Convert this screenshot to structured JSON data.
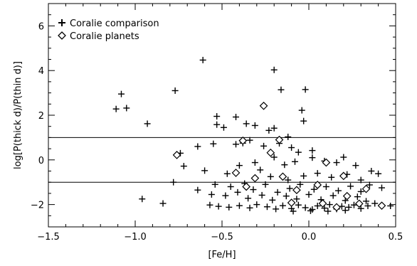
{
  "chart_data": {
    "type": "scatter",
    "xlabel": "[Fe/H]",
    "ylabel": "log[P(thick d)/P(thin d)]",
    "xlim": [
      -1.5,
      0.5
    ],
    "ylim": [
      -3,
      7
    ],
    "xticks": [
      -1.5,
      -1.0,
      -0.5,
      0.0,
      0.5
    ],
    "xtick_labels": [
      "−1.5",
      "−1.0",
      "−0.5",
      "0.0",
      "0.5"
    ],
    "yticks": [
      -2,
      0,
      2,
      4,
      6
    ],
    "ytick_labels": [
      "−2",
      "0",
      "2",
      "4",
      "6"
    ],
    "hlines": [
      1,
      -1
    ],
    "grid": false,
    "legend_position": "top-left",
    "series": [
      {
        "name": "Coralie comparison",
        "marker": "plus",
        "color": "#000000",
        "points": [
          [
            -1.08,
            2.95
          ],
          [
            -1.11,
            2.28
          ],
          [
            -1.05,
            2.32
          ],
          [
            -0.93,
            1.62
          ],
          [
            -0.77,
            3.1
          ],
          [
            -0.61,
            4.47
          ],
          [
            -0.2,
            4.03
          ],
          [
            -0.16,
            3.14
          ],
          [
            -0.02,
            3.15
          ],
          [
            -0.04,
            2.22
          ],
          [
            -0.53,
            1.95
          ],
          [
            -0.49,
            1.45
          ],
          [
            -0.53,
            1.58
          ],
          [
            -0.42,
            1.92
          ],
          [
            -0.36,
            1.62
          ],
          [
            -0.31,
            1.54
          ],
          [
            -0.2,
            1.42
          ],
          [
            -0.23,
            1.32
          ],
          [
            -0.12,
            1.03
          ],
          [
            -0.03,
            1.74
          ],
          [
            -0.64,
            0.6
          ],
          [
            -0.55,
            0.72
          ],
          [
            -0.42,
            0.7
          ],
          [
            -0.38,
            0.75
          ],
          [
            -0.34,
            0.88
          ],
          [
            -0.26,
            0.62
          ],
          [
            -0.17,
            0.74
          ],
          [
            -0.1,
            0.55
          ],
          [
            -0.06,
            0.34
          ],
          [
            0.02,
            0.42
          ],
          [
            -0.74,
            0.3
          ],
          [
            -0.72,
            -0.28
          ],
          [
            -0.6,
            -0.48
          ],
          [
            -0.78,
            -1.0
          ],
          [
            -0.96,
            -1.75
          ],
          [
            -0.84,
            -1.95
          ],
          [
            -0.47,
            -0.62
          ],
          [
            -0.4,
            -0.25
          ],
          [
            -0.31,
            -0.12
          ],
          [
            -0.28,
            -0.45
          ],
          [
            -0.2,
            0.12
          ],
          [
            -0.14,
            -0.22
          ],
          [
            -0.08,
            -0.08
          ],
          [
            0.02,
            0.1
          ],
          [
            0.09,
            -0.05
          ],
          [
            0.16,
            -0.12
          ],
          [
            0.2,
            0.12
          ],
          [
            0.27,
            -0.25
          ],
          [
            0.36,
            -0.5
          ],
          [
            0.4,
            -0.62
          ],
          [
            -0.54,
            -1.1
          ],
          [
            -0.45,
            -1.2
          ],
          [
            -0.37,
            -1.06
          ],
          [
            -0.32,
            -1.33
          ],
          [
            -0.25,
            -1.1
          ],
          [
            -0.18,
            -1.45
          ],
          [
            -0.11,
            -1.28
          ],
          [
            -0.05,
            -1.1
          ],
          [
            0.03,
            -1.32
          ],
          [
            0.1,
            -1.2
          ],
          [
            0.17,
            -1.38
          ],
          [
            0.24,
            -1.18
          ],
          [
            0.3,
            -1.42
          ],
          [
            0.35,
            -1.12
          ],
          [
            0.42,
            -1.25
          ],
          [
            -0.64,
            -1.35
          ],
          [
            -0.56,
            -1.55
          ],
          [
            -0.48,
            -1.6
          ],
          [
            -0.41,
            -1.45
          ],
          [
            -0.35,
            -1.72
          ],
          [
            -0.27,
            -1.58
          ],
          [
            -0.21,
            -1.8
          ],
          [
            -0.13,
            -1.62
          ],
          [
            -0.07,
            -1.75
          ],
          [
            0.0,
            -1.55
          ],
          [
            0.07,
            -1.78
          ],
          [
            0.14,
            -1.6
          ],
          [
            0.21,
            -1.82
          ],
          [
            0.28,
            -1.65
          ],
          [
            0.33,
            -1.85
          ],
          [
            -0.57,
            -2.02
          ],
          [
            -0.52,
            -2.08
          ],
          [
            -0.46,
            -2.12
          ],
          [
            -0.4,
            -2.05
          ],
          [
            -0.34,
            -2.15
          ],
          [
            -0.3,
            -2.0
          ],
          [
            -0.24,
            -2.1
          ],
          [
            -0.19,
            -2.2
          ],
          [
            -0.15,
            -2.05
          ],
          [
            -0.1,
            -2.18
          ],
          [
            -0.06,
            -2.02
          ],
          [
            -0.02,
            -2.14
          ],
          [
            0.02,
            -2.22
          ],
          [
            0.05,
            -2.06
          ],
          [
            0.09,
            -2.16
          ],
          [
            0.12,
            -2.0
          ],
          [
            0.16,
            -2.2
          ],
          [
            0.19,
            -2.08
          ],
          [
            0.23,
            -2.12
          ],
          [
            0.26,
            -2.02
          ],
          [
            0.3,
            -2.18
          ],
          [
            0.34,
            -2.06
          ],
          [
            0.47,
            -2.06
          ],
          [
            0.38,
            -1.95
          ],
          [
            -0.09,
            -2.3
          ],
          [
            0.01,
            -2.28
          ],
          [
            0.11,
            -2.3
          ],
          [
            0.21,
            -2.26
          ],
          [
            -0.22,
            -0.75
          ],
          [
            -0.03,
            -0.72
          ],
          [
            0.05,
            -0.6
          ],
          [
            0.13,
            -0.78
          ],
          [
            0.22,
            -0.65
          ],
          [
            0.3,
            -0.9
          ],
          [
            -0.12,
            -0.9
          ]
        ]
      },
      {
        "name": "Coralie planets",
        "marker": "diamond",
        "color": "#000000",
        "points": [
          [
            -0.26,
            2.42
          ],
          [
            -0.17,
            0.9
          ],
          [
            -0.38,
            0.86
          ],
          [
            -0.22,
            0.32
          ],
          [
            -0.76,
            0.22
          ],
          [
            -0.42,
            -0.58
          ],
          [
            -0.31,
            -0.82
          ],
          [
            -0.15,
            -0.75
          ],
          [
            0.1,
            -0.12
          ],
          [
            0.2,
            -0.72
          ],
          [
            0.33,
            -1.3
          ],
          [
            0.05,
            -1.12
          ],
          [
            -0.07,
            -1.35
          ],
          [
            -0.36,
            -1.2
          ],
          [
            0.22,
            -1.62
          ],
          [
            0.29,
            -1.96
          ],
          [
            0.42,
            -2.05
          ],
          [
            -0.1,
            -1.92
          ],
          [
            0.08,
            -1.95
          ],
          [
            0.16,
            -2.12
          ]
        ]
      }
    ]
  }
}
